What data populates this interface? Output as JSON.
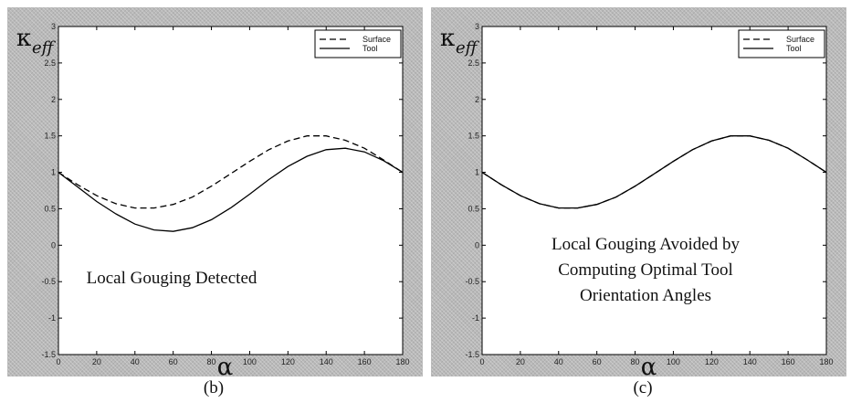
{
  "panels": [
    {
      "id": "b",
      "caption": "(b)",
      "ylabel": "κ",
      "ylabel_sub": "eff",
      "xlabel": "α",
      "legend": [
        "Surface",
        "Tool"
      ],
      "annotation": [
        "Local Gouging Detected"
      ],
      "x_ticks": [
        "0",
        "20",
        "40",
        "60",
        "80",
        "100",
        "120",
        "140",
        "160",
        "180"
      ],
      "y_ticks": [
        "-1.5",
        "-1",
        "-0.5",
        "0",
        "0.5",
        "1",
        "1.5",
        "2",
        "2.5",
        "3"
      ]
    },
    {
      "id": "c",
      "caption": "(c)",
      "ylabel": "κ",
      "ylabel_sub": "eff",
      "xlabel": "α",
      "legend": [
        "Surface",
        "Tool"
      ],
      "annotation": [
        "Local Gouging Avoided by",
        "Computing Optimal Tool",
        "Orientation Angles"
      ],
      "x_ticks": [
        "0",
        "20",
        "40",
        "60",
        "80",
        "100",
        "120",
        "140",
        "160",
        "180"
      ],
      "y_ticks": [
        "-1.5",
        "-1",
        "-0.5",
        "0",
        "0.5",
        "1",
        "1.5",
        "2",
        "2.5",
        "3"
      ]
    }
  ],
  "chart_data": [
    {
      "type": "line",
      "title": "",
      "xlabel": "α",
      "ylabel": "κeff",
      "xlim": [
        0,
        180
      ],
      "ylim": [
        -1.5,
        3
      ],
      "grid": false,
      "legend_position": "top-right",
      "annotation": "Local Gouging Detected",
      "series": [
        {
          "name": "Surface",
          "style": "dashed",
          "x": [
            0,
            10,
            20,
            30,
            40,
            50,
            60,
            70,
            80,
            90,
            100,
            110,
            120,
            130,
            140,
            150,
            160,
            170,
            180
          ],
          "y": [
            1.0,
            0.83,
            0.68,
            0.57,
            0.51,
            0.51,
            0.56,
            0.66,
            0.81,
            0.98,
            1.15,
            1.31,
            1.43,
            1.5,
            1.5,
            1.44,
            1.33,
            1.17,
            1.0
          ]
        },
        {
          "name": "Tool",
          "style": "solid",
          "x": [
            0,
            10,
            20,
            30,
            40,
            50,
            60,
            70,
            80,
            90,
            100,
            110,
            120,
            130,
            140,
            150,
            160,
            170,
            180
          ],
          "y": [
            1.0,
            0.8,
            0.6,
            0.43,
            0.29,
            0.21,
            0.19,
            0.24,
            0.35,
            0.51,
            0.7,
            0.9,
            1.08,
            1.22,
            1.31,
            1.33,
            1.28,
            1.16,
            1.0
          ]
        }
      ]
    },
    {
      "type": "line",
      "title": "",
      "xlabel": "α",
      "ylabel": "κeff",
      "xlim": [
        0,
        180
      ],
      "ylim": [
        -1.5,
        3
      ],
      "grid": false,
      "legend_position": "top-right",
      "annotation": "Local Gouging Avoided by Computing Optimal Tool Orientation Angles",
      "series": [
        {
          "name": "Surface",
          "style": "dashed",
          "x": [
            0,
            10,
            20,
            30,
            40,
            50,
            60,
            70,
            80,
            90,
            100,
            110,
            120,
            130,
            140,
            150,
            160,
            170,
            180
          ],
          "y": [
            1.0,
            0.83,
            0.68,
            0.57,
            0.51,
            0.51,
            0.56,
            0.66,
            0.81,
            0.98,
            1.15,
            1.31,
            1.43,
            1.5,
            1.5,
            1.44,
            1.33,
            1.17,
            1.0
          ]
        },
        {
          "name": "Tool",
          "style": "solid",
          "x": [
            0,
            10,
            20,
            30,
            40,
            50,
            60,
            70,
            80,
            90,
            100,
            110,
            120,
            130,
            140,
            150,
            160,
            170,
            180
          ],
          "y": [
            1.0,
            0.83,
            0.68,
            0.57,
            0.51,
            0.51,
            0.56,
            0.66,
            0.81,
            0.98,
            1.15,
            1.31,
            1.43,
            1.5,
            1.5,
            1.44,
            1.33,
            1.17,
            1.0
          ]
        }
      ]
    }
  ]
}
